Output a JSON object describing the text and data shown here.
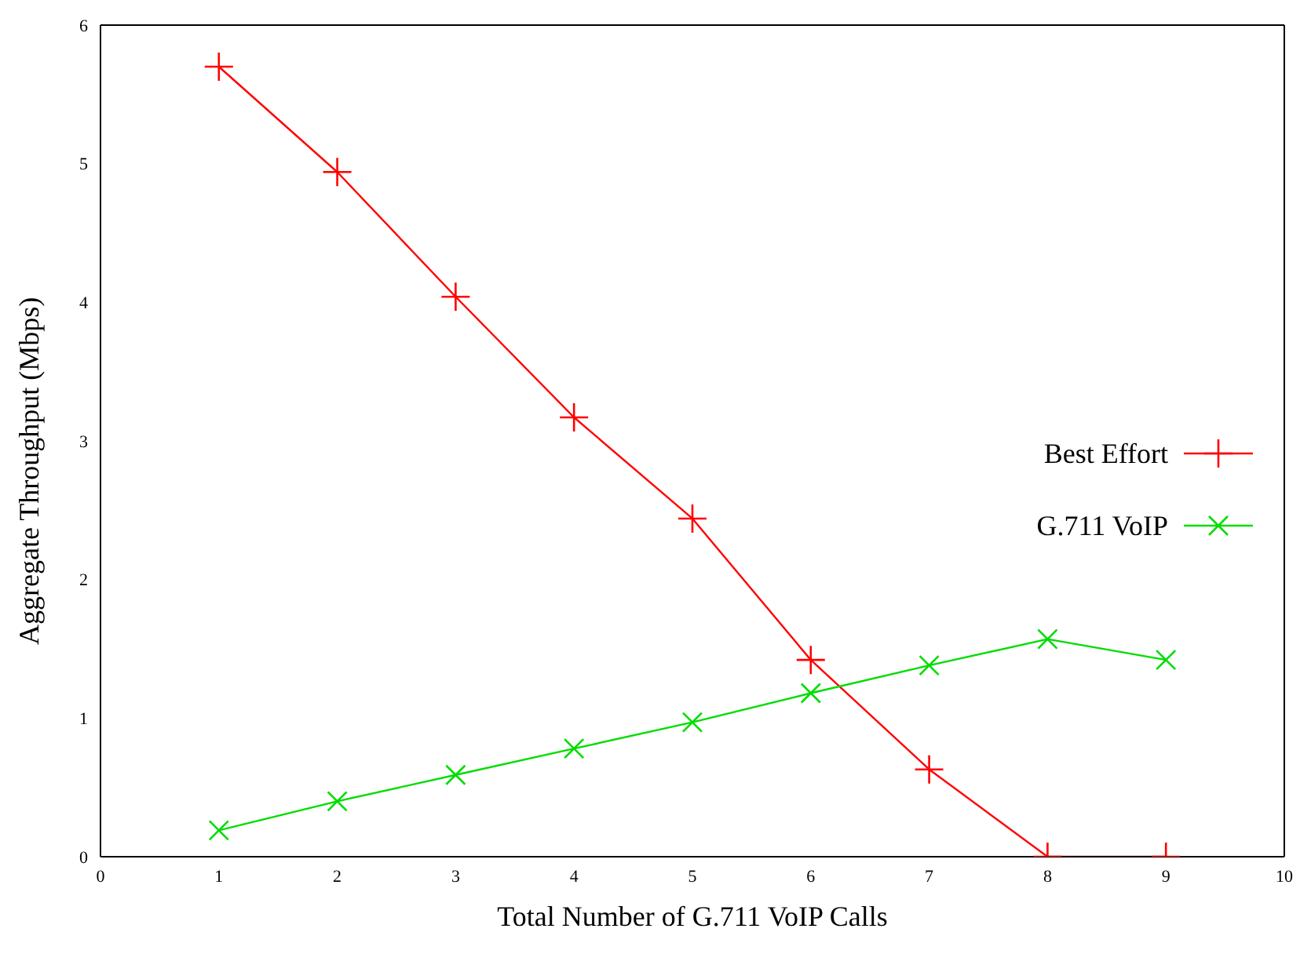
{
  "chart_data": {
    "type": "line",
    "xlabel": "Total Number of G.711 VoIP Calls",
    "ylabel": "Aggregate Throughput (Mbps)",
    "x": [
      1,
      2,
      3,
      4,
      5,
      6,
      7,
      8,
      9
    ],
    "series": [
      {
        "name": "Best Effort",
        "color": "#ff0000",
        "marker": "cross",
        "values": [
          5.7,
          4.94,
          4.04,
          3.17,
          2.44,
          1.42,
          0.63,
          0,
          0
        ]
      },
      {
        "name": "G.711 VoIP",
        "color": "#00dd00",
        "marker": "x",
        "values": [
          0.19,
          0.4,
          0.59,
          0.78,
          0.97,
          1.18,
          1.38,
          1.57,
          1.42
        ]
      }
    ],
    "xlim": [
      0,
      10
    ],
    "xticks": [
      0,
      1,
      2,
      3,
      4,
      5,
      6,
      7,
      8,
      9,
      10
    ],
    "ylim": [
      0,
      6
    ],
    "yticks": [
      0,
      1,
      2,
      3,
      4,
      5,
      6
    ],
    "grid": false,
    "legend": "right",
    "line_style": "solid"
  }
}
